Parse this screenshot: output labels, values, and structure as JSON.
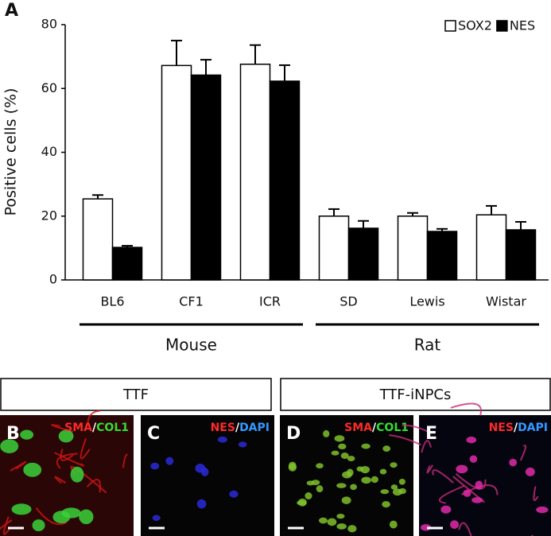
{
  "chart_data": {
    "type": "bar",
    "panel_label": "A",
    "y_label": "Positive cells (%)",
    "categories": [
      "BL6",
      "CF1",
      "ICR",
      "SD",
      "Lewis",
      "Wistar"
    ],
    "series": [
      {
        "name": "SOX2",
        "color": "#ffffff",
        "values": [
          25.4,
          67.2,
          67.6,
          20.0,
          20.0,
          20.4
        ],
        "errors": [
          1.2,
          7.8,
          6.0,
          2.2,
          1.0,
          2.8
        ]
      },
      {
        "name": "NES",
        "color": "#000000",
        "values": [
          10.2,
          64.2,
          62.3,
          16.2,
          15.2,
          15.7
        ],
        "errors": [
          0.5,
          4.8,
          5.0,
          2.3,
          0.8,
          2.5
        ]
      }
    ],
    "groups": [
      {
        "name": "Mouse",
        "size": 3
      },
      {
        "name": "Rat",
        "size": 3
      }
    ],
    "ylim": [
      0,
      80
    ],
    "yticks": [
      0,
      20,
      40,
      60,
      80
    ],
    "grid": false,
    "legend": "top-right"
  },
  "image_headers": [
    "TTF",
    "TTF-iNPCs"
  ],
  "image_panels": [
    {
      "letter": "B",
      "markers": [
        {
          "text": "SMA",
          "color": "#ff2a2a"
        },
        {
          "text": "/",
          "color": "#ffffff"
        },
        {
          "text": "COL1",
          "color": "#33dd33"
        }
      ]
    },
    {
      "letter": "C",
      "markers": [
        {
          "text": "NES",
          "color": "#ff2a2a"
        },
        {
          "text": "/",
          "color": "#ffffff"
        },
        {
          "text": "DAPI",
          "color": "#3399ff"
        }
      ]
    },
    {
      "letter": "D",
      "markers": [
        {
          "text": "SMA",
          "color": "#ff2a2a"
        },
        {
          "text": "/",
          "color": "#ffffff"
        },
        {
          "text": "COL1",
          "color": "#33dd33"
        }
      ]
    },
    {
      "letter": "E",
      "markers": [
        {
          "text": "NES",
          "color": "#ff2a2a"
        },
        {
          "text": "/",
          "color": "#ffffff"
        },
        {
          "text": "DAPI",
          "color": "#3399ff"
        }
      ]
    }
  ]
}
